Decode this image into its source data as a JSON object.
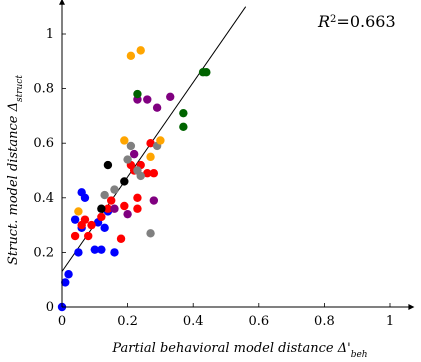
{
  "chart_data": {
    "type": "scatter",
    "xlabel": "Partial behavioral model distance Δ'",
    "xlabel_sub": "beh",
    "ylabel": "Struct. model distance Δ",
    "ylabel_sub": "struct",
    "annotation": "=0.663",
    "annotation_symbol": "R",
    "annotation_sup": "2",
    "xlim": [
      0,
      1.05
    ],
    "ylim": [
      0,
      1.1
    ],
    "xticks": [
      "0",
      "0.2",
      "0.4",
      "0.6",
      "0.8",
      "1"
    ],
    "yticks": [
      "0",
      "0.2",
      "0.4",
      "0.6",
      "0.8",
      "1"
    ],
    "xtick_values": [
      0,
      0.2,
      0.4,
      0.6,
      0.8,
      1
    ],
    "ytick_values": [
      0,
      0.2,
      0.4,
      0.6,
      0.8,
      1
    ],
    "trendline": {
      "x1": 0.0,
      "y1": 0.13,
      "x2": 0.56,
      "y2": 1.1
    },
    "series": [
      {
        "color": "#0000ff",
        "points": [
          [
            0.0,
            0.0
          ],
          [
            0.01,
            0.09
          ],
          [
            0.02,
            0.12
          ],
          [
            0.04,
            0.32
          ],
          [
            0.05,
            0.2
          ],
          [
            0.06,
            0.29
          ],
          [
            0.06,
            0.42
          ],
          [
            0.07,
            0.4
          ],
          [
            0.1,
            0.21
          ],
          [
            0.11,
            0.31
          ],
          [
            0.12,
            0.21
          ],
          [
            0.13,
            0.29
          ],
          [
            0.14,
            0.35
          ],
          [
            0.16,
            0.2
          ]
        ]
      },
      {
        "color": "#ff0000",
        "points": [
          [
            0.04,
            0.26
          ],
          [
            0.06,
            0.3
          ],
          [
            0.07,
            0.32
          ],
          [
            0.08,
            0.26
          ],
          [
            0.09,
            0.3
          ],
          [
            0.12,
            0.33
          ],
          [
            0.14,
            0.36
          ],
          [
            0.15,
            0.39
          ],
          [
            0.18,
            0.25
          ],
          [
            0.19,
            0.37
          ],
          [
            0.21,
            0.52
          ],
          [
            0.22,
            0.5
          ],
          [
            0.23,
            0.36
          ],
          [
            0.23,
            0.4
          ],
          [
            0.24,
            0.52
          ],
          [
            0.26,
            0.49
          ],
          [
            0.27,
            0.6
          ],
          [
            0.28,
            0.49
          ]
        ]
      },
      {
        "color": "#000000",
        "points": [
          [
            0.12,
            0.36
          ],
          [
            0.14,
            0.52
          ],
          [
            0.19,
            0.46
          ]
        ]
      },
      {
        "color": "#808080",
        "points": [
          [
            0.13,
            0.41
          ],
          [
            0.16,
            0.43
          ],
          [
            0.2,
            0.54
          ],
          [
            0.21,
            0.59
          ],
          [
            0.23,
            0.5
          ],
          [
            0.24,
            0.48
          ],
          [
            0.27,
            0.27
          ],
          [
            0.29,
            0.59
          ]
        ]
      },
      {
        "color": "#ffa500",
        "points": [
          [
            0.05,
            0.35
          ],
          [
            0.19,
            0.61
          ],
          [
            0.21,
            0.92
          ],
          [
            0.24,
            0.94
          ],
          [
            0.27,
            0.55
          ],
          [
            0.3,
            0.61
          ]
        ]
      },
      {
        "color": "#800080",
        "points": [
          [
            0.16,
            0.36
          ],
          [
            0.2,
            0.34
          ],
          [
            0.22,
            0.56
          ],
          [
            0.23,
            0.76
          ],
          [
            0.26,
            0.76
          ],
          [
            0.28,
            0.39
          ],
          [
            0.29,
            0.73
          ],
          [
            0.33,
            0.77
          ]
        ]
      },
      {
        "color": "#006400",
        "points": [
          [
            0.23,
            0.78
          ],
          [
            0.37,
            0.66
          ],
          [
            0.37,
            0.71
          ],
          [
            0.43,
            0.86
          ],
          [
            0.44,
            0.86
          ]
        ]
      }
    ]
  }
}
